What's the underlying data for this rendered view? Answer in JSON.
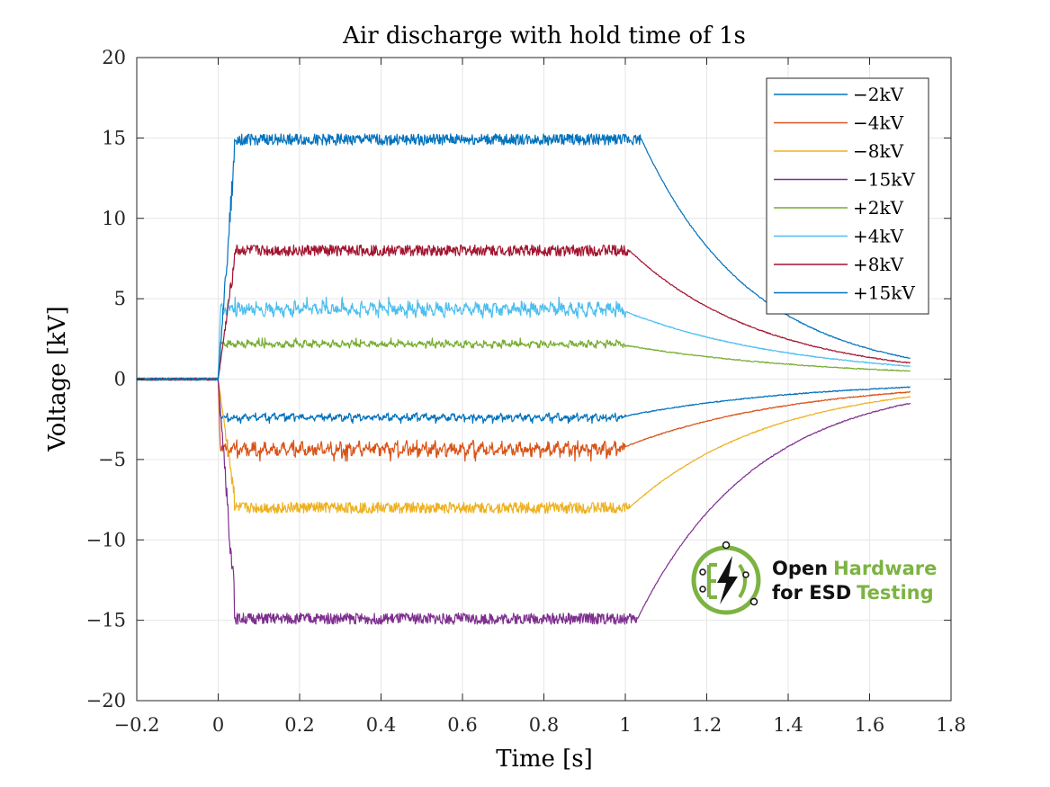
{
  "chart_data": {
    "type": "line",
    "title": "Air discharge with hold time of 1s",
    "xlabel": "Time [s]",
    "ylabel": "Voltage [kV]",
    "xlim": [
      -0.2,
      1.8
    ],
    "ylim": [
      -20,
      20
    ],
    "xticks": [
      -0.2,
      0,
      0.2,
      0.4,
      0.6,
      0.8,
      1,
      1.2,
      1.4,
      1.6,
      1.8
    ],
    "xtick_labels": [
      "−0.2",
      "0",
      "0.2",
      "0.4",
      "0.6",
      "0.8",
      "1",
      "1.2",
      "1.4",
      "1.6",
      "1.8"
    ],
    "yticks": [
      -20,
      -15,
      -10,
      -5,
      0,
      5,
      10,
      15,
      20
    ],
    "ytick_labels": [
      "−20",
      "−15",
      "−10",
      "−5",
      "0",
      "5",
      "10",
      "15",
      "20"
    ],
    "grid": true,
    "legend_position": "top-right",
    "series": [
      {
        "name": "−2kV",
        "color": "#0072BD",
        "plateau": -2.3,
        "release_time": 1.0,
        "end_value": -0.5,
        "noise": 0.15
      },
      {
        "name": "−4kV",
        "color": "#D95319",
        "plateau": -4.2,
        "release_time": 1.0,
        "end_value": -0.8,
        "noise": 0.3
      },
      {
        "name": "−8kV",
        "color": "#EDB120",
        "plateau": -8.0,
        "release_time": 1.01,
        "end_value": -1.1,
        "noise": 0.35
      },
      {
        "name": "−15kV",
        "color": "#7E2F8E",
        "plateau": -14.9,
        "release_time": 1.03,
        "end_value": -1.5,
        "noise": 0.35
      },
      {
        "name": "+2kV",
        "color": "#77AC30",
        "plateau": 2.1,
        "release_time": 1.0,
        "end_value": 0.5,
        "noise": 0.15
      },
      {
        "name": "+4kV",
        "color": "#4DBEEE",
        "plateau": 4.2,
        "release_time": 1.0,
        "end_value": 0.8,
        "noise": 0.3
      },
      {
        "name": "+8kV",
        "color": "#A2142F",
        "plateau": 8.0,
        "release_time": 1.01,
        "end_value": 1.0,
        "noise": 0.35
      },
      {
        "name": "+15kV",
        "color": "#0072BD",
        "plateau": 14.9,
        "release_time": 1.04,
        "end_value": 1.3,
        "noise": 0.35
      }
    ],
    "data_start": -0.2,
    "data_end": 1.7
  },
  "logo": {
    "line1_a": "Open",
    "line1_b": "Hardware",
    "line2_a": "for ESD",
    "line2_b": "Testing",
    "dark": "#111111",
    "green": "#7CB342"
  }
}
